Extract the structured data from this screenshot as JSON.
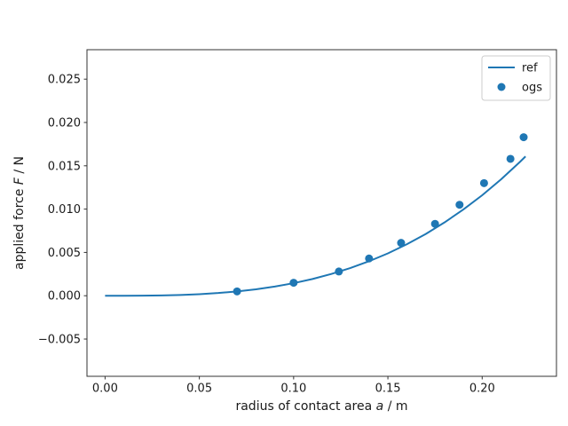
{
  "figure": {
    "background": "#ffffff",
    "accent_color": "#1f77b4",
    "spine_color": "#333333",
    "text_color": "#1a1a1a",
    "legend_border_color": "#cccccc"
  },
  "chart_data": {
    "type": "line+scatter",
    "title": "",
    "xlabel": "radius of contact area a / m",
    "xlabel_parts": [
      {
        "text": "radius of contact area ",
        "italic": false
      },
      {
        "text": "a",
        "italic": true
      },
      {
        "text": " / m",
        "italic": false
      }
    ],
    "ylabel": "applied force F / N",
    "ylabel_parts": [
      {
        "text": "applied force ",
        "italic": false
      },
      {
        "text": "F",
        "italic": true
      },
      {
        "text": " / N",
        "italic": false
      }
    ],
    "xlim": [
      -0.0096,
      0.2394
    ],
    "ylim": [
      -0.0093,
      0.0284
    ],
    "x_ticks": [
      0.0,
      0.05,
      0.1,
      0.15,
      0.2
    ],
    "x_tick_labels": [
      "0.00",
      "0.05",
      "0.10",
      "0.15",
      "0.20"
    ],
    "y_ticks": [
      -0.005,
      0.0,
      0.005,
      0.01,
      0.015,
      0.02,
      0.025
    ],
    "y_tick_labels": [
      "−0.005",
      "0.000",
      "0.005",
      "0.010",
      "0.015",
      "0.020",
      "0.025"
    ],
    "grid": false,
    "legend": {
      "position": "upper right",
      "frame": true,
      "entries": [
        "ref",
        "ogs"
      ]
    },
    "series": [
      {
        "name": "ref",
        "type": "line",
        "color": "#1f77b4",
        "linewidth": 2,
        "x": [
          0.0,
          0.01,
          0.02,
          0.03,
          0.04,
          0.05,
          0.06,
          0.07,
          0.08,
          0.09,
          0.1,
          0.11,
          0.12,
          0.13,
          0.14,
          0.15,
          0.16,
          0.17,
          0.18,
          0.19,
          0.2,
          0.21,
          0.22,
          0.223
        ],
        "y": [
          0.0,
          1.5e-06,
          1.16e-05,
          3.92e-05,
          9.28e-05,
          0.000181,
          0.000313,
          0.000497,
          0.000742,
          0.001057,
          0.00145,
          0.00193,
          0.00251,
          0.00319,
          0.00398,
          0.00489,
          0.00594,
          0.00712,
          0.00846,
          0.00995,
          0.0116,
          0.01343,
          0.01544,
          0.01608
        ]
      },
      {
        "name": "ogs",
        "type": "scatter",
        "color": "#1f77b4",
        "marker": "circle",
        "marker_radius": 4.5,
        "x": [
          0.07,
          0.1,
          0.124,
          0.14,
          0.157,
          0.175,
          0.188,
          0.201,
          0.215,
          0.222
        ],
        "y": [
          0.0005,
          0.0015,
          0.0028,
          0.0043,
          0.0061,
          0.0083,
          0.0105,
          0.013,
          0.0158,
          0.0183
        ]
      }
    ]
  }
}
